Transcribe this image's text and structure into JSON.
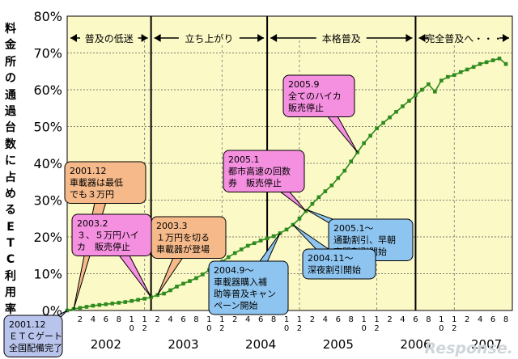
{
  "chart_data": {
    "type": "line",
    "ylabel": "料金所の通過台数に占めるETC利用率",
    "ylim": [
      0,
      80
    ],
    "yticks": [
      "0%",
      "10%",
      "20%",
      "30%",
      "40%",
      "50%",
      "60%",
      "70%",
      "80%"
    ],
    "x_start": "2001.12",
    "x_end": "2007.9",
    "month_labels": [
      "2",
      "4",
      "6",
      "8",
      "10",
      "12",
      "2",
      "4",
      "6",
      "8",
      "10",
      "12",
      "2",
      "4",
      "6",
      "8",
      "10",
      "12",
      "2",
      "4",
      "6",
      "8",
      "10",
      "12",
      "2",
      "4",
      "6",
      "8",
      "10",
      "12",
      "2",
      "4",
      "6",
      "8"
    ],
    "years": [
      {
        "label": "2002",
        "month": 6
      },
      {
        "label": "2003",
        "month": 18
      },
      {
        "label": "2004",
        "month": 30
      },
      {
        "label": "2005",
        "month": 42
      },
      {
        "label": "2006",
        "month": 54
      },
      {
        "label": "2007",
        "month": 65
      }
    ],
    "phases": [
      {
        "label": "普及の低迷",
        "start": 0,
        "end": 13
      },
      {
        "label": "立ち上がり",
        "start": 13,
        "end": 31
      },
      {
        "label": "本格普及",
        "start": 31,
        "end": 54
      },
      {
        "label": "完全普及へ・・・",
        "start": 54,
        "end": 69
      }
    ],
    "series": [
      {
        "color": "#2e8b1e",
        "points": [
          [
            0,
            0.0
          ],
          [
            1,
            0.4
          ],
          [
            2,
            0.7
          ],
          [
            3,
            1.0
          ],
          [
            4,
            1.3
          ],
          [
            5,
            1.5
          ],
          [
            6,
            1.7
          ],
          [
            7,
            1.9
          ],
          [
            8,
            2.1
          ],
          [
            9,
            2.3
          ],
          [
            10,
            2.6
          ],
          [
            11,
            2.9
          ],
          [
            12,
            3.2
          ],
          [
            13,
            3.6
          ],
          [
            14,
            4.2
          ],
          [
            15,
            4.6
          ],
          [
            16,
            5.5
          ],
          [
            17,
            6.5
          ],
          [
            18,
            7.3
          ],
          [
            19,
            8.0
          ],
          [
            20,
            8.8
          ],
          [
            21,
            9.8
          ],
          [
            22,
            11.0
          ],
          [
            23,
            12.0
          ],
          [
            24,
            13.2
          ],
          [
            25,
            14.5
          ],
          [
            26,
            15.6
          ],
          [
            27,
            16.6
          ],
          [
            28,
            17.6
          ],
          [
            29,
            18.3
          ],
          [
            30,
            19.0
          ],
          [
            31,
            19.6
          ],
          [
            32,
            20.2
          ],
          [
            33,
            21.0
          ],
          [
            34,
            22.0
          ],
          [
            35,
            23.3
          ],
          [
            36,
            25.0
          ],
          [
            37,
            27.0
          ],
          [
            38,
            29.0
          ],
          [
            39,
            30.8
          ],
          [
            40,
            32.4
          ],
          [
            41,
            34.0
          ],
          [
            42,
            36.0
          ],
          [
            43,
            38.0
          ],
          [
            44,
            40.5
          ],
          [
            45,
            43.0
          ],
          [
            46,
            45.5
          ],
          [
            47,
            47.5
          ],
          [
            48,
            49.5
          ],
          [
            49,
            51.0
          ],
          [
            50,
            52.5
          ],
          [
            51,
            54.0
          ],
          [
            52,
            55.5
          ],
          [
            53,
            57.0
          ],
          [
            54,
            58.5
          ],
          [
            55,
            60.0
          ],
          [
            56,
            61.5
          ],
          [
            57,
            59.5
          ],
          [
            58,
            62.5
          ],
          [
            59,
            63.5
          ],
          [
            60,
            64.0
          ],
          [
            61,
            64.8
          ],
          [
            62,
            65.5
          ],
          [
            63,
            66.2
          ],
          [
            64,
            67.0
          ],
          [
            65,
            67.5
          ],
          [
            66,
            68.0
          ],
          [
            67,
            68.5
          ],
          [
            68,
            67.0
          ]
        ]
      }
    ],
    "annotations": [
      {
        "text": [
          "2001.12",
          "ＥＴＣゲート",
          "全国配備完了"
        ],
        "color": "#b9c4ec",
        "month": 0,
        "value": 0
      },
      {
        "text": [
          "2001.12",
          "車載器は最低",
          "でも３万円"
        ],
        "color": "#f5b98a",
        "month": 0,
        "value": 0
      },
      {
        "text": [
          "2003.2",
          "３、５万円ハイ",
          "カ　販売停止"
        ],
        "color": "#f58fe0",
        "month": 13,
        "value": 3.6
      },
      {
        "text": [
          "2003.3",
          "１万円を切る",
          "車載器が登場"
        ],
        "color": "#f5b98a",
        "month": 14,
        "value": 4.2
      },
      {
        "text": [
          "2004.9～",
          "車載器購入補",
          "助等普及キャン",
          "ペーン開始"
        ],
        "color": "#8ec5f0",
        "month": 33,
        "value": 21.0
      },
      {
        "text": [
          "2005.1",
          "都市高速の回数",
          "券　販売停止"
        ],
        "color": "#f58fe0",
        "month": 37,
        "value": 27.0
      },
      {
        "text": [
          "2005.1～",
          "通勤割引、早朝",
          "夜間割引開始"
        ],
        "color": "#8ec5f0",
        "month": 37,
        "value": 27.0
      },
      {
        "text": [
          "2004.11～",
          "深夜割引開始"
        ],
        "color": "#8ec5f0",
        "month": 35,
        "value": 23.3
      },
      {
        "text": [
          "2005.9",
          "全てのハイカ",
          "販売停止"
        ],
        "color": "#f58fe0",
        "month": 45,
        "value": 43.0
      }
    ]
  },
  "watermark": "Response."
}
